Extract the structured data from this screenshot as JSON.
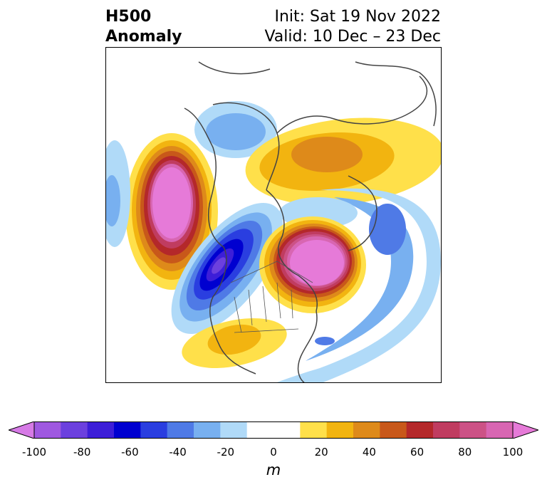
{
  "title": {
    "variable": "H500",
    "field": "Anomaly",
    "init": "Init: Sat 19 Nov 2022",
    "valid": "Valid: 10 Dec – 23 Dec"
  },
  "colorbar": {
    "units": "m",
    "range": [
      -100,
      100
    ],
    "interval": 10,
    "extend": "both",
    "tick_labels": [
      "-100",
      "-80",
      "-60",
      "-40",
      "-20",
      "0",
      "20",
      "40",
      "60",
      "80",
      "100"
    ],
    "colors": [
      "#d67ae6",
      "#9f58e0",
      "#6c40de",
      "#3d1ed8",
      "#0000d0",
      "#2a3ee0",
      "#4f7ae6",
      "#78b0f0",
      "#b0daf8",
      "#ffffff",
      "#ffffff",
      "#ffe04a",
      "#f2b410",
      "#de8a1a",
      "#c8581a",
      "#b4282a",
      "#c03c60",
      "#cc5286",
      "#d866b2",
      "#e67ad8"
    ]
  },
  "map": {
    "projection": "north-polar-stereographic",
    "region": "North America / Northern Hemisphere",
    "features": [
      {
        "name": "North Pacific ridge",
        "sign": "positive",
        "peak_anomaly_m": 100
      },
      {
        "name": "Western North America trough",
        "sign": "negative",
        "peak_anomaly_m": -70
      },
      {
        "name": "Eastern Canada / Greenland ridge",
        "sign": "positive",
        "peak_anomaly_m": 100
      },
      {
        "name": "Siberian / Arctic ridge",
        "sign": "positive",
        "peak_anomaly_m": 40
      },
      {
        "name": "North Atlantic trough",
        "sign": "negative",
        "peak_anomaly_m": -40
      },
      {
        "name": "Alaska trough",
        "sign": "negative",
        "peak_anomaly_m": -30
      },
      {
        "name": "Southern US ridge",
        "sign": "positive",
        "peak_anomaly_m": 30
      }
    ]
  }
}
